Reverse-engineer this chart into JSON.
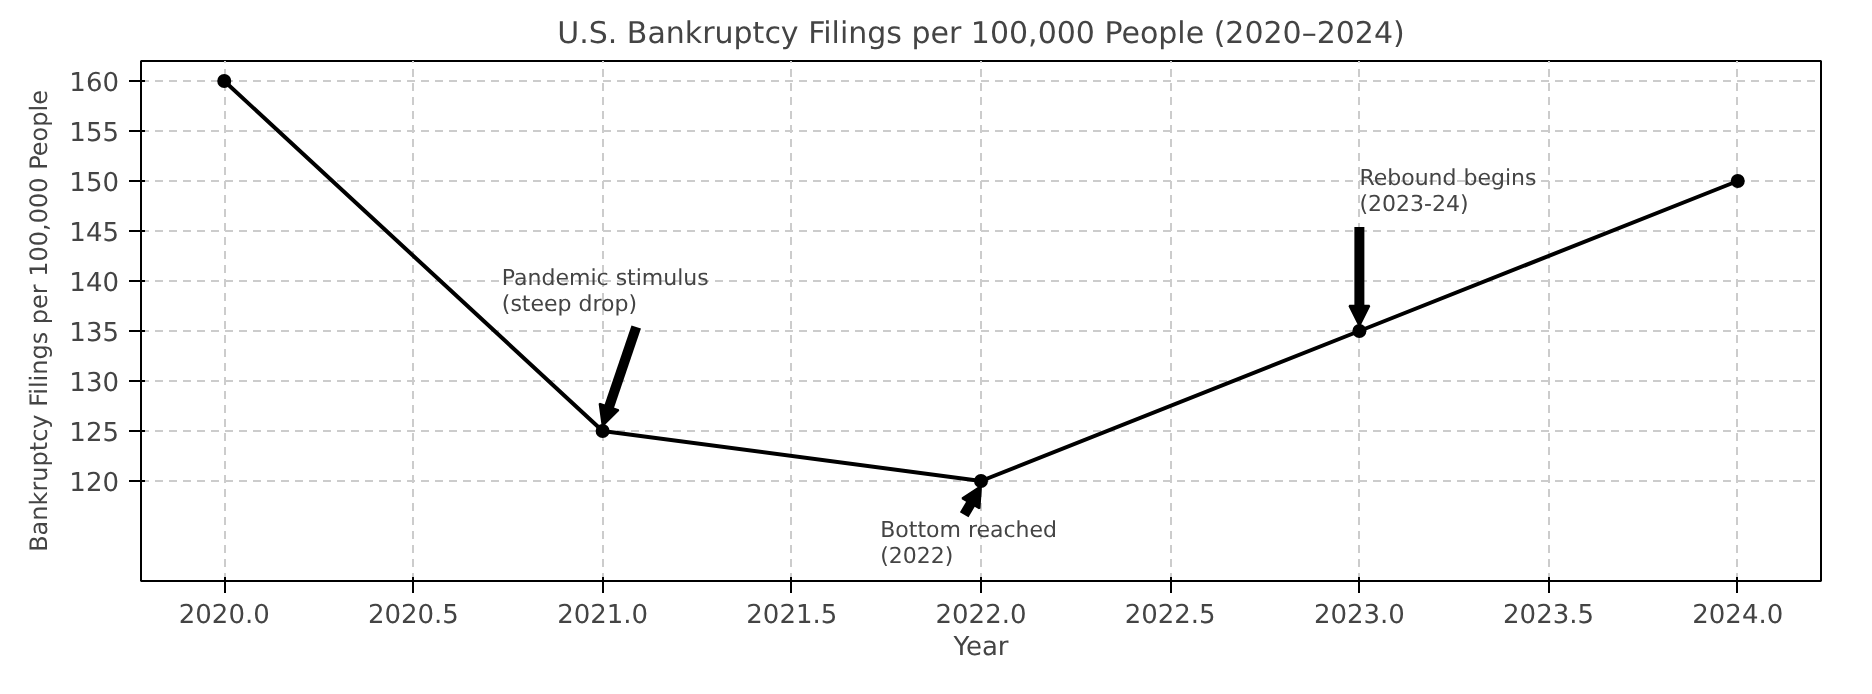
{
  "chart_data": {
    "type": "line",
    "title": "U.S. Bankruptcy Filings per 100,000 People (2020–2024)",
    "xlabel": "Year",
    "ylabel": "Bankruptcy Filings per 100,000 People",
    "x": [
      2020,
      2021,
      2022,
      2023,
      2024
    ],
    "series": [
      {
        "color": "#000000",
        "values": [
          160,
          125,
          120,
          135,
          150
        ]
      }
    ],
    "xlim": [
      2019.78,
      2024.22
    ],
    "ylim": [
      110,
      162
    ],
    "xticks": [
      {
        "value": 2020,
        "label": "2020.0"
      },
      {
        "value": 2020.5,
        "label": "2020.5"
      },
      {
        "value": 2021,
        "label": "2021.0"
      },
      {
        "value": 2021.5,
        "label": "2021.5"
      },
      {
        "value": 2022,
        "label": "2022.0"
      },
      {
        "value": 2022.5,
        "label": "2022.5"
      },
      {
        "value": 2023,
        "label": "2023.0"
      },
      {
        "value": 2023.5,
        "label": "2023.5"
      },
      {
        "value": 2024,
        "label": "2024.0"
      }
    ],
    "yticks": [
      120,
      125,
      130,
      135,
      140,
      145,
      150,
      155,
      160
    ],
    "grid": true,
    "marker": "circle",
    "line_style": "solid",
    "annotations": [
      {
        "text": "Pandemic stimulus\n(steep drop)",
        "x": 2021,
        "y": 125
      },
      {
        "text": "Bottom reached\n(2022)",
        "x": 2022,
        "y": 120
      },
      {
        "text": "Rebound begins\n(2023-24)",
        "x": 2023,
        "y": 135
      }
    ]
  }
}
